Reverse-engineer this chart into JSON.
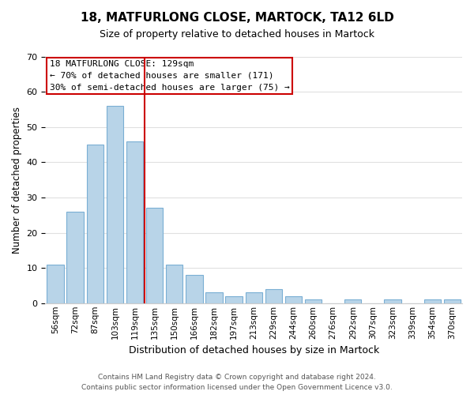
{
  "title": "18, MATFURLONG CLOSE, MARTOCK, TA12 6LD",
  "subtitle": "Size of property relative to detached houses in Martock",
  "xlabel": "Distribution of detached houses by size in Martock",
  "ylabel": "Number of detached properties",
  "bar_labels": [
    "56sqm",
    "72sqm",
    "87sqm",
    "103sqm",
    "119sqm",
    "135sqm",
    "150sqm",
    "166sqm",
    "182sqm",
    "197sqm",
    "213sqm",
    "229sqm",
    "244sqm",
    "260sqm",
    "276sqm",
    "292sqm",
    "307sqm",
    "323sqm",
    "339sqm",
    "354sqm",
    "370sqm"
  ],
  "bar_values": [
    11,
    26,
    45,
    56,
    46,
    27,
    11,
    8,
    3,
    2,
    3,
    4,
    2,
    1,
    0,
    1,
    0,
    1,
    0,
    1,
    1
  ],
  "bar_color": "#b8d4e8",
  "bar_edge_color": "#7aafd4",
  "ylim": [
    0,
    70
  ],
  "yticks": [
    0,
    10,
    20,
    30,
    40,
    50,
    60,
    70
  ],
  "vline_color": "#cc0000",
  "annotation_line1": "18 MATFURLONG CLOSE: 129sqm",
  "annotation_line2": "← 70% of detached houses are smaller (171)",
  "annotation_line3": "30% of semi-detached houses are larger (75) →",
  "footer_line1": "Contains HM Land Registry data © Crown copyright and database right 2024.",
  "footer_line2": "Contains public sector information licensed under the Open Government Licence v3.0.",
  "background_color": "#ffffff",
  "grid_color": "#e0e0e0"
}
